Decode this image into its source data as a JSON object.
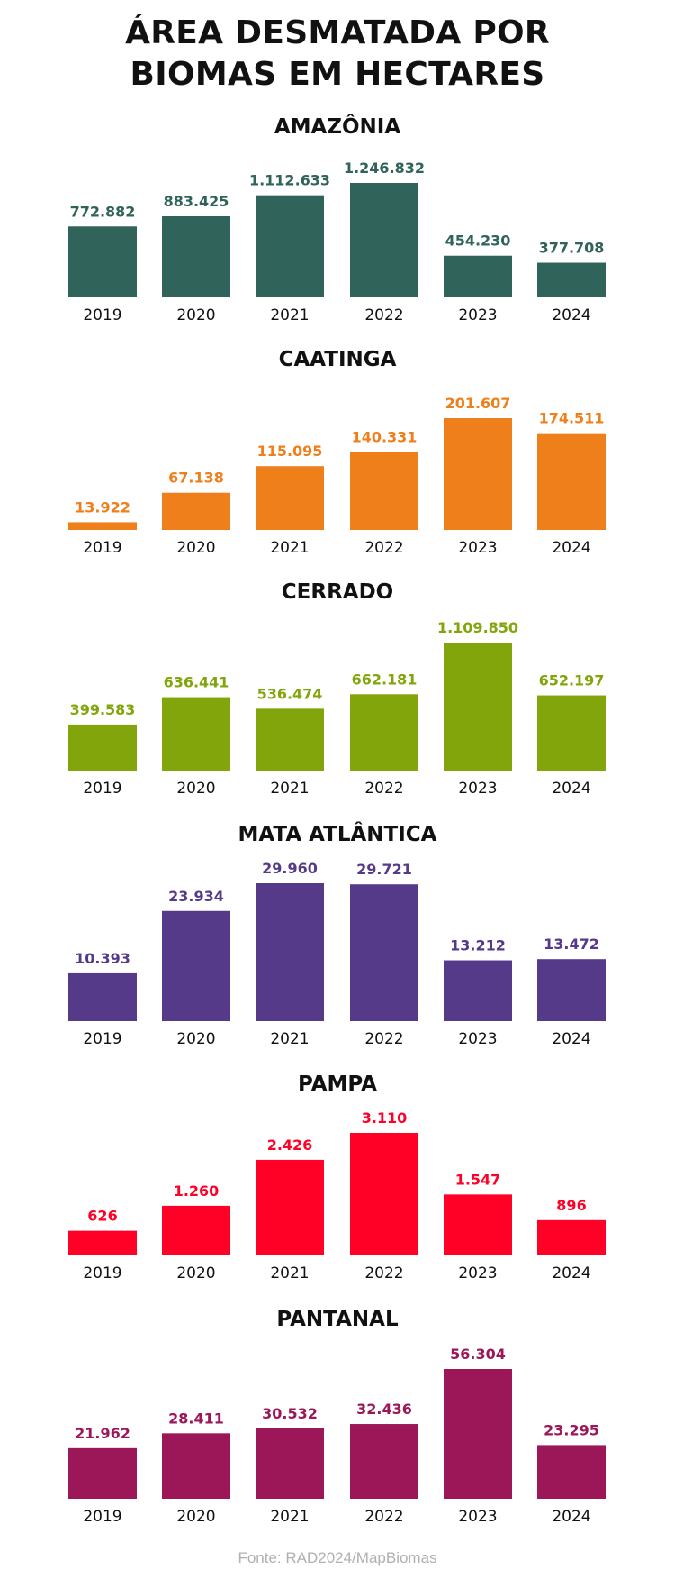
{
  "title_lines": [
    "ÁREA DESMATADA POR",
    "BIOMAS EM HECTARES"
  ],
  "footer": "Fonte: RAD2024/MapBiomas",
  "chart_data": [
    {
      "type": "bar",
      "title": "AMAZÔNIA",
      "color": "#30645a",
      "categories": [
        "2019",
        "2020",
        "2021",
        "2022",
        "2023",
        "2024"
      ],
      "values": [
        772882,
        883425,
        1112633,
        1246832,
        454230,
        377708
      ],
      "value_labels": [
        "772.882",
        "883.425",
        "1.112.633",
        "1.246.832",
        "454.230",
        "377.708"
      ]
    },
    {
      "type": "bar",
      "title": "CAATINGA",
      "color": "#ef7f1a",
      "categories": [
        "2019",
        "2020",
        "2021",
        "2022",
        "2023",
        "2024"
      ],
      "values": [
        13922,
        67138,
        115095,
        140331,
        201607,
        174511
      ],
      "value_labels": [
        "13.922",
        "67.138",
        "115.095",
        "140.331",
        "201.607",
        "174.511"
      ]
    },
    {
      "type": "bar",
      "title": "CERRADO",
      "color": "#82a50c",
      "categories": [
        "2019",
        "2020",
        "2021",
        "2022",
        "2023",
        "2024"
      ],
      "values": [
        399583,
        636441,
        536474,
        662181,
        1109850,
        652197
      ],
      "value_labels": [
        "399.583",
        "636.441",
        "536.474",
        "662.181",
        "1.109.850",
        "652.197"
      ]
    },
    {
      "type": "bar",
      "title": "MATA ATLÂNTICA",
      "color": "#563a8a",
      "categories": [
        "2019",
        "2020",
        "2021",
        "2022",
        "2023",
        "2024"
      ],
      "values": [
        10393,
        23934,
        29960,
        29721,
        13212,
        13472
      ],
      "value_labels": [
        "10.393",
        "23.934",
        "29.960",
        "29.721",
        "13.212",
        "13.472"
      ]
    },
    {
      "type": "bar",
      "title": "PAMPA",
      "color": "#ff0026",
      "categories": [
        "2019",
        "2020",
        "2021",
        "2022",
        "2023",
        "2024"
      ],
      "values": [
        626,
        1260,
        2426,
        3110,
        1547,
        896
      ],
      "value_labels": [
        "626",
        "1.260",
        "2.426",
        "3.110",
        "1.547",
        "896"
      ]
    },
    {
      "type": "bar",
      "title": "PANTANAL",
      "color": "#9b1758",
      "categories": [
        "2019",
        "2020",
        "2021",
        "2022",
        "2023",
        "2024"
      ],
      "values": [
        21962,
        28411,
        30532,
        32436,
        56304,
        23295
      ],
      "value_labels": [
        "21.962",
        "28.411",
        "30.532",
        "32.436",
        "56.304",
        "23.295"
      ]
    }
  ]
}
